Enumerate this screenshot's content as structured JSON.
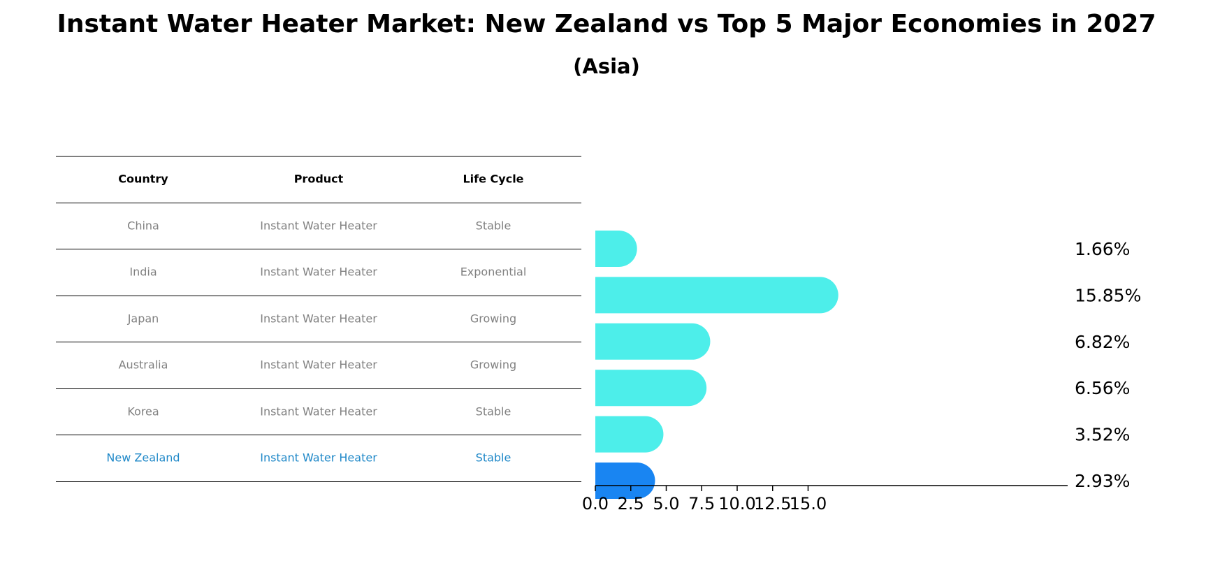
{
  "title": "Instant Water Heater Market: New Zealand vs Top 5 Major Economies in 2027",
  "subtitle": "(Asia)",
  "table": {
    "headers": [
      "Country",
      "Product",
      "Life Cycle"
    ],
    "rows": [
      [
        "China",
        "Instant Water Heater",
        "Stable"
      ],
      [
        "India",
        "Instant Water Heater",
        "Exponential"
      ],
      [
        "Japan",
        "Instant Water Heater",
        "Growing"
      ],
      [
        "Australia",
        "Instant Water Heater",
        "Growing"
      ],
      [
        "Korea",
        "Instant Water Heater",
        "Stable"
      ],
      [
        "New Zealand",
        "Instant Water Heater",
        "Stable"
      ]
    ],
    "highlight_row": 5
  },
  "colors": {
    "bar": "#4deeea",
    "highlight_bar": "#1985f2",
    "text_muted": "#808080",
    "text_highlight": "#1f88c8"
  },
  "chart_data": {
    "type": "bar",
    "orientation": "horizontal",
    "categories": [
      "China",
      "India",
      "Japan",
      "Australia",
      "Korea",
      "New Zealand"
    ],
    "values": [
      1.66,
      15.85,
      6.82,
      6.56,
      3.52,
      2.93
    ],
    "value_labels": [
      "1.66%",
      "15.85%",
      "6.82%",
      "6.56%",
      "3.52%",
      "2.93%"
    ],
    "xlim": [
      0,
      16.6
    ],
    "xticks": [
      0.0,
      2.5,
      5.0,
      7.5,
      10.0,
      12.5,
      15.0
    ],
    "xtick_labels": [
      "0.0",
      "2.5",
      "5.0",
      "7.5",
      "10.0",
      "12.5",
      "15.0"
    ],
    "grid": false,
    "legend": "none"
  }
}
